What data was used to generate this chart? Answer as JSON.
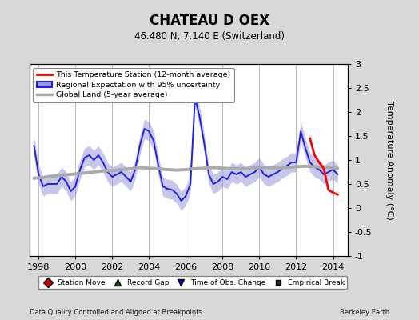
{
  "title": "CHATEAU D OEX",
  "subtitle": "46.480 N, 7.140 E (Switzerland)",
  "ylabel": "Temperature Anomaly (°C)",
  "footer_left": "Data Quality Controlled and Aligned at Breakpoints",
  "footer_right": "Berkeley Earth",
  "ylim": [
    -1.0,
    3.0
  ],
  "yticks": [
    -1.0,
    -0.5,
    0.0,
    0.5,
    1.0,
    1.5,
    2.0,
    2.5,
    3.0
  ],
  "xlim": [
    1997.5,
    2014.8
  ],
  "xticks": [
    1998,
    2000,
    2002,
    2004,
    2006,
    2008,
    2010,
    2012,
    2014
  ],
  "bg_color": "#d8d8d8",
  "plot_bg_color": "#ffffff",
  "grid_color": "#bbbbbb",
  "regional_color": "#2222dd",
  "regional_fill_color": "#9999dd",
  "station_color": "#ff0000",
  "global_color": "#aaaaaa",
  "regional_x": [
    1997.75,
    1998.0,
    1998.25,
    1998.5,
    1998.75,
    1999.0,
    1999.25,
    1999.5,
    1999.75,
    2000.0,
    2000.25,
    2000.5,
    2000.75,
    2001.0,
    2001.25,
    2001.5,
    2001.75,
    2002.0,
    2002.25,
    2002.5,
    2002.75,
    2003.0,
    2003.25,
    2003.5,
    2003.75,
    2004.0,
    2004.25,
    2004.5,
    2004.75,
    2005.0,
    2005.25,
    2005.5,
    2005.75,
    2006.0,
    2006.25,
    2006.5,
    2006.75,
    2007.0,
    2007.25,
    2007.5,
    2007.75,
    2008.0,
    2008.25,
    2008.5,
    2008.75,
    2009.0,
    2009.25,
    2009.5,
    2009.75,
    2010.0,
    2010.25,
    2010.5,
    2010.75,
    2011.0,
    2011.25,
    2011.5,
    2011.75,
    2012.0,
    2012.25,
    2012.5,
    2012.75,
    2013.0,
    2013.25,
    2013.5,
    2013.75,
    2014.0,
    2014.25
  ],
  "regional_y": [
    1.3,
    0.7,
    0.45,
    0.5,
    0.5,
    0.5,
    0.65,
    0.55,
    0.35,
    0.45,
    0.8,
    1.05,
    1.1,
    1.0,
    1.1,
    0.95,
    0.75,
    0.65,
    0.7,
    0.75,
    0.65,
    0.55,
    0.8,
    1.3,
    1.65,
    1.6,
    1.4,
    0.9,
    0.45,
    0.4,
    0.38,
    0.3,
    0.15,
    0.25,
    0.5,
    2.3,
    1.9,
    1.35,
    0.7,
    0.5,
    0.55,
    0.65,
    0.6,
    0.75,
    0.7,
    0.75,
    0.65,
    0.7,
    0.75,
    0.85,
    0.7,
    0.65,
    0.7,
    0.75,
    0.82,
    0.88,
    0.95,
    0.95,
    1.6,
    1.25,
    0.95,
    0.85,
    0.8,
    0.7,
    0.75,
    0.8,
    0.7
  ],
  "regional_upper": [
    1.5,
    0.9,
    0.65,
    0.7,
    0.7,
    0.7,
    0.85,
    0.75,
    0.55,
    0.65,
    1.0,
    1.25,
    1.3,
    1.2,
    1.3,
    1.15,
    0.95,
    0.85,
    0.9,
    0.95,
    0.85,
    0.75,
    1.0,
    1.5,
    1.85,
    1.8,
    1.6,
    1.1,
    0.65,
    0.6,
    0.58,
    0.5,
    0.35,
    0.45,
    0.7,
    2.5,
    2.1,
    1.55,
    0.9,
    0.7,
    0.75,
    0.85,
    0.8,
    0.95,
    0.9,
    0.95,
    0.85,
    0.9,
    0.95,
    1.05,
    0.9,
    0.85,
    0.9,
    0.95,
    1.02,
    1.08,
    1.15,
    1.15,
    1.8,
    1.45,
    1.15,
    1.05,
    1.0,
    0.9,
    0.95,
    1.0,
    0.9
  ],
  "regional_lower": [
    1.1,
    0.5,
    0.25,
    0.3,
    0.3,
    0.3,
    0.45,
    0.35,
    0.15,
    0.25,
    0.6,
    0.85,
    0.9,
    0.8,
    0.9,
    0.75,
    0.55,
    0.45,
    0.5,
    0.55,
    0.45,
    0.35,
    0.6,
    1.1,
    1.45,
    1.4,
    1.2,
    0.7,
    0.25,
    0.2,
    0.18,
    0.1,
    -0.05,
    0.05,
    0.3,
    2.1,
    1.7,
    1.15,
    0.5,
    0.3,
    0.35,
    0.45,
    0.4,
    0.55,
    0.5,
    0.55,
    0.45,
    0.5,
    0.55,
    0.65,
    0.5,
    0.45,
    0.5,
    0.55,
    0.62,
    0.68,
    0.75,
    0.75,
    1.4,
    1.05,
    0.75,
    0.65,
    0.6,
    0.5,
    0.55,
    0.6,
    0.5
  ],
  "station_x": [
    2012.75,
    2013.0,
    2013.25,
    2013.5,
    2013.75,
    2014.0,
    2014.25
  ],
  "station_y": [
    1.45,
    1.1,
    0.95,
    0.82,
    0.38,
    0.32,
    0.28
  ],
  "global_x": [
    1997.75,
    1998.0,
    1998.5,
    1999.0,
    1999.5,
    2000.0,
    2000.5,
    2001.0,
    2001.5,
    2002.0,
    2002.5,
    2003.0,
    2003.5,
    2004.0,
    2004.5,
    2005.0,
    2005.5,
    2006.0,
    2006.5,
    2007.0,
    2007.5,
    2008.0,
    2008.5,
    2009.0,
    2009.5,
    2010.0,
    2010.5,
    2011.0,
    2011.5,
    2012.0,
    2012.5,
    2013.0,
    2013.5,
    2014.0,
    2014.25
  ],
  "global_y": [
    0.62,
    0.63,
    0.65,
    0.67,
    0.69,
    0.71,
    0.73,
    0.75,
    0.77,
    0.78,
    0.8,
    0.82,
    0.84,
    0.83,
    0.82,
    0.8,
    0.79,
    0.8,
    0.82,
    0.83,
    0.84,
    0.83,
    0.82,
    0.82,
    0.83,
    0.84,
    0.84,
    0.83,
    0.84,
    0.86,
    0.87,
    0.86,
    0.85,
    0.84,
    0.83
  ],
  "legend_items": [
    {
      "label": "This Temperature Station (12-month average)",
      "color": "#ff0000"
    },
    {
      "label": "Regional Expectation with 95% uncertainty",
      "color": "#2222dd"
    },
    {
      "label": "Global Land (5-year average)",
      "color": "#aaaaaa"
    }
  ],
  "bottom_legend": [
    {
      "label": "Station Move",
      "color": "#cc0000",
      "marker": "D"
    },
    {
      "label": "Record Gap",
      "color": "#006600",
      "marker": "^"
    },
    {
      "label": "Time of Obs. Change",
      "color": "#0000cc",
      "marker": "v"
    },
    {
      "label": "Empirical Break",
      "color": "#222222",
      "marker": "s"
    }
  ]
}
